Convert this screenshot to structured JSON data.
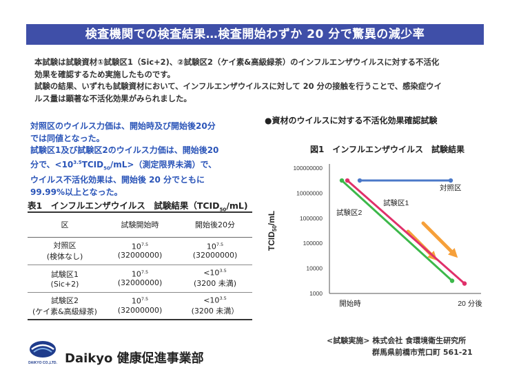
{
  "banner": {
    "title": "検査機関での検査結果…検査開始わずか 20 分で驚異の減少率"
  },
  "intro": {
    "line1": "本試験は試験資材①試験区1（Sic+2)、②試験区2（ケイ素&高級緑茶）のインフルエンザウイルスに対する不活化",
    "line2": "効果を確認するため実施したものです。",
    "line3": "試験の結果、いずれも試験資材において、インフルエンザウイルスに対して 20 分の接触を行うことで、感染症ウイ",
    "line4": "ルス量は顕著な不活化効果がみられました。"
  },
  "summary": {
    "line1": "対照区のウイルス力価は、開始時及び開始後20分",
    "line2": "では同値となった。",
    "line3": "試験区1及び試験区2のウイルス力価は、開始後20",
    "line4_pre": "分で、<10",
    "line4_sup": "3.5",
    "line4_mid": "TCID",
    "line4_sub": "50",
    "line4_post": "/mL>（測定限界未満）で、",
    "line5": "ウイルス不活化効果は、開始後 20 分でともに",
    "line6": "99.99%以上となった。"
  },
  "table": {
    "title_pre": "表1　インフルエンザウイルス　試験結果（TCID",
    "title_sub": "50",
    "title_post": "/mL)",
    "headers": [
      "区",
      "試験開始時",
      "開始後20分"
    ],
    "rows": [
      {
        "name": "対照区",
        "note": "(検体なし)",
        "start_base": "10",
        "start_exp": "7.5",
        "start_val": "(32000000)",
        "end_base": "10",
        "end_exp": "7.5",
        "end_val": "(32000000)"
      },
      {
        "name": "試験区1",
        "note": "(Sic+2)",
        "start_base": "10",
        "start_exp": "7.5",
        "start_val": "(32000000)",
        "end_base": "<10",
        "end_exp": "3.5",
        "end_val": "(3200 未満)"
      },
      {
        "name": "試験区2",
        "note": "(ケイ素&高級緑茶)",
        "start_base": "10",
        "start_exp": "7.5",
        "start_val": "(32000000)",
        "end_base": "<10",
        "end_exp": "3.5",
        "end_val": "(3200 未満）"
      }
    ]
  },
  "chart_caption": "●資材のウイルスに対する不活化効果確認試験",
  "chart_data": {
    "type": "line",
    "title": "図1　インフルエンザウイルス　試験結果",
    "ylabel": "TCID50/mL",
    "ylabel_main": "TCID",
    "ylabel_sub": "50",
    "ylabel_post": "/mL",
    "yscale": "log",
    "ylim": [
      1000,
      100000000
    ],
    "yticks": [
      "100000000",
      "10000000",
      "1000000",
      "100000",
      "10000",
      "1000"
    ],
    "x": [
      "開始時",
      "20 分後"
    ],
    "series": [
      {
        "name": "対照区",
        "values": [
          32000000,
          32000000
        ],
        "color": "#4a78c8"
      },
      {
        "name": "試験区1",
        "values": [
          32000000,
          3200
        ],
        "color": "#e0306a"
      },
      {
        "name": "試験区2",
        "values": [
          32000000,
          3200
        ],
        "color": "#3cb84a"
      }
    ]
  },
  "credit": {
    "line1": "<試験実施> 株式会社 食環境衛生研究所",
    "line2": "群馬県前橋市荒口町 561-21"
  },
  "footer": {
    "logo_text": "DAIKYO CO.,LTD.",
    "company": "Daikyo 健康促進事業部"
  },
  "colors": {
    "banner": "#3f4fa8",
    "summary_text": "#2a54b8",
    "arrow": "#f6a03a"
  }
}
